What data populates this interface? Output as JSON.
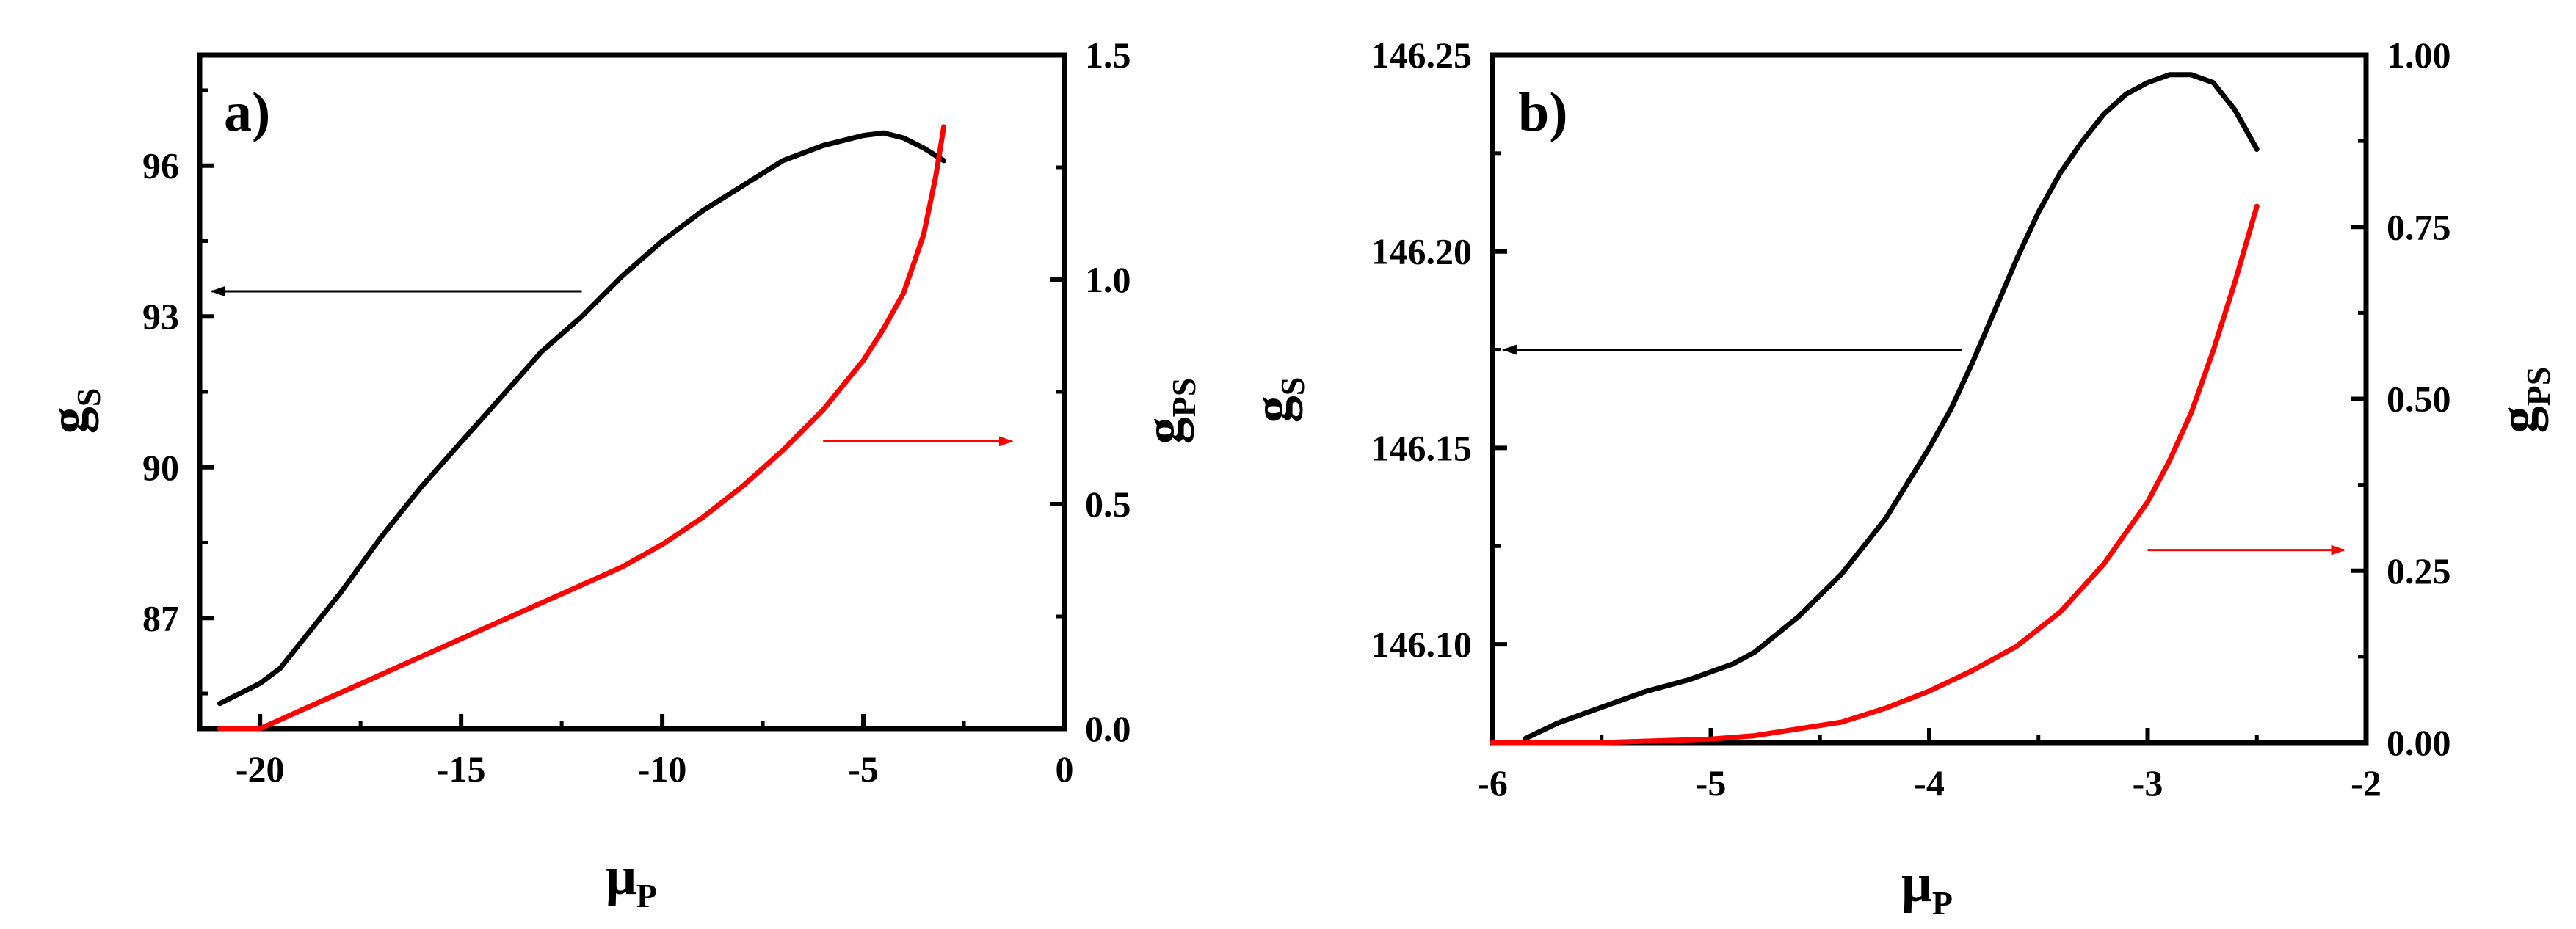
{
  "chart_data": [
    {
      "type": "line",
      "panel_label": "a)",
      "xlabel": {
        "main": "μ",
        "sub": "P"
      },
      "ylabel_left": {
        "main": "g",
        "sub": "S"
      },
      "ylabel_right": {
        "main": "g",
        "sub": "PS"
      },
      "xlim": [
        -21.5,
        0
      ],
      "ylim_left": [
        84.8,
        98.2
      ],
      "ylim_right": [
        0,
        1.5
      ],
      "xticks": [
        -20,
        -15,
        -10,
        -5,
        0
      ],
      "xtick_labels": [
        "-20",
        "-15",
        "-10",
        "-5",
        "0"
      ],
      "yticks_left": [
        87,
        90,
        93,
        96
      ],
      "ytick_labels_left": [
        "87",
        "90",
        "93",
        "96"
      ],
      "yticks_right": [
        0.0,
        0.5,
        1.0,
        1.5
      ],
      "ytick_labels_right": [
        "0.0",
        "0.5",
        "1.0",
        "1.5"
      ],
      "grid": false,
      "series": [
        {
          "axis": "left",
          "color": "#000000",
          "x": [
            -21,
            -20.5,
            -20,
            -19.5,
            -19,
            -18,
            -17,
            -16,
            -15,
            -14,
            -13,
            -12,
            -11,
            -10,
            -9,
            -8,
            -7,
            -6,
            -5,
            -4.5,
            -4,
            -3.5,
            -3
          ],
          "y": [
            85.3,
            85.5,
            85.7,
            86.0,
            86.5,
            87.5,
            88.6,
            89.6,
            90.5,
            91.4,
            92.3,
            93.0,
            93.8,
            94.5,
            95.1,
            95.6,
            96.1,
            96.4,
            96.6,
            96.65,
            96.55,
            96.35,
            96.1
          ]
        },
        {
          "axis": "right",
          "color": "#ff0000",
          "x": [
            -21,
            -20.5,
            -20,
            -19.5,
            -19,
            -18,
            -17,
            -16,
            -15,
            -14,
            -13,
            -12,
            -11,
            -10,
            -9,
            -8,
            -7,
            -6,
            -5,
            -4.5,
            -4,
            -3.5,
            -3.2,
            -3
          ],
          "y": [
            0.0,
            0.0,
            0.0,
            0.02,
            0.04,
            0.08,
            0.12,
            0.16,
            0.2,
            0.24,
            0.28,
            0.32,
            0.36,
            0.41,
            0.47,
            0.54,
            0.62,
            0.71,
            0.82,
            0.89,
            0.97,
            1.1,
            1.23,
            1.34
          ]
        }
      ],
      "annotations": [
        {
          "type": "arrow",
          "color": "#000000",
          "from": [
            -12,
            93.5
          ],
          "to": [
            -21.2,
            93.5
          ],
          "axis": "left"
        },
        {
          "type": "arrow",
          "color": "#ff0000",
          "from": [
            -6,
            0.64
          ],
          "to": [
            -1.3,
            0.64
          ],
          "axis": "right"
        }
      ]
    },
    {
      "type": "line",
      "panel_label": "b)",
      "xlabel": {
        "main": "μ",
        "sub": "P"
      },
      "ylabel_left": {
        "main": "g",
        "sub": "S"
      },
      "ylabel_right": {
        "main": "g",
        "sub": "PS"
      },
      "xlim": [
        -6,
        -2
      ],
      "ylim_left": [
        146.075,
        146.25
      ],
      "ylim_right": [
        0,
        1.0
      ],
      "xticks": [
        -6,
        -5,
        -4,
        -3,
        -2
      ],
      "xtick_labels": [
        "-6",
        "-5",
        "-4",
        "-3",
        "-2"
      ],
      "yticks_left": [
        146.1,
        146.15,
        146.2,
        146.25
      ],
      "ytick_labels_left": [
        "146.10",
        "146.15",
        "146.20",
        "146.25"
      ],
      "yticks_right": [
        0.0,
        0.25,
        0.5,
        0.75,
        1.0
      ],
      "ytick_labels_right": [
        "0.00",
        "0.25",
        "0.50",
        "0.75",
        "1.00"
      ],
      "grid": false,
      "series": [
        {
          "axis": "left",
          "color": "#000000",
          "x": [
            -5.85,
            -5.7,
            -5.5,
            -5.3,
            -5.1,
            -5.0,
            -4.9,
            -4.8,
            -4.6,
            -4.4,
            -4.2,
            -4.0,
            -3.9,
            -3.8,
            -3.7,
            -3.6,
            -3.5,
            -3.4,
            -3.3,
            -3.2,
            -3.1,
            -3.0,
            -2.9,
            -2.8,
            -2.7,
            -2.6,
            -2.5
          ],
          "y": [
            146.076,
            146.08,
            146.084,
            146.088,
            146.091,
            146.093,
            146.095,
            146.098,
            146.107,
            146.118,
            146.132,
            146.15,
            146.16,
            146.172,
            146.185,
            146.198,
            146.21,
            146.22,
            146.228,
            146.235,
            146.24,
            146.243,
            146.245,
            146.245,
            146.243,
            146.236,
            146.226
          ]
        },
        {
          "axis": "right",
          "color": "#ff0000",
          "x": [
            -6,
            -5.5,
            -5,
            -4.8,
            -4.6,
            -4.4,
            -4.2,
            -4.0,
            -3.8,
            -3.6,
            -3.4,
            -3.2,
            -3.0,
            -2.9,
            -2.8,
            -2.7,
            -2.6,
            -2.5
          ],
          "y": [
            0.0,
            0.0,
            0.005,
            0.01,
            0.02,
            0.03,
            0.05,
            0.075,
            0.105,
            0.14,
            0.19,
            0.26,
            0.35,
            0.41,
            0.48,
            0.57,
            0.67,
            0.78
          ]
        }
      ],
      "annotations": [
        {
          "type": "arrow",
          "color": "#000000",
          "from": [
            -3.85,
            146.175
          ],
          "to": [
            -5.95,
            146.175
          ],
          "axis": "left"
        },
        {
          "type": "arrow",
          "color": "#ff0000",
          "from": [
            -3.0,
            0.28
          ],
          "to": [
            -2.1,
            0.28
          ],
          "axis": "right"
        }
      ]
    }
  ]
}
